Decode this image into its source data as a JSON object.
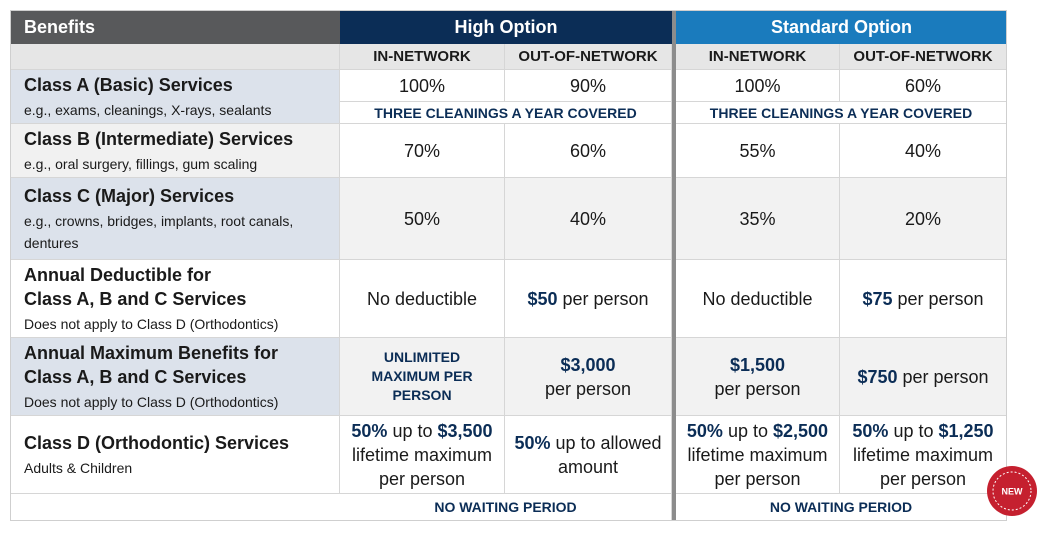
{
  "header": {
    "benefits": "Benefits",
    "high_option": "High Option",
    "standard_option": "Standard Option",
    "columns": [
      "IN-NETWORK",
      "OUT-OF-NETWORK",
      "IN-NETWORK",
      "OUT-OF-NETWORK"
    ]
  },
  "rows": [
    {
      "title": [
        "Class A (Basic) Services"
      ],
      "subtitle": "e.g., exams, cleanings, X-rays, sealants",
      "cells": [
        "100%",
        "90%",
        "100%",
        "60%"
      ],
      "notes": [
        "THREE CLEANINGS A YEAR COVERED",
        "THREE CLEANINGS A YEAR COVERED"
      ]
    },
    {
      "title": [
        "Class B (Intermediate) Services"
      ],
      "subtitle": "e.g., oral surgery, fillings, gum scaling",
      "cells": [
        "70%",
        "60%",
        "55%",
        "40%"
      ]
    },
    {
      "title": [
        "Class C (Major) Services"
      ],
      "subtitle": "e.g., crowns, bridges, implants, root canals, dentures",
      "cells": [
        "50%",
        "40%",
        "35%",
        "20%"
      ]
    },
    {
      "title": [
        "Annual Deductible for",
        "Class A, B and C Services"
      ],
      "subtitle": "Does not apply to Class D (Orthodontics)",
      "cells": [
        "No deductible",
        [
          {
            "text": "$50",
            "bold": true
          },
          {
            "text": "per person"
          }
        ],
        "No deductible",
        [
          {
            "text": "$75",
            "bold": true
          },
          {
            "text": "per person"
          }
        ]
      ]
    },
    {
      "title": [
        "Annual Maximum Benefits for",
        "Class A, B and C Services"
      ],
      "subtitle": "Does not apply to Class D (Orthodontics)",
      "cells": [
        [
          {
            "text": "UNLIMITED MAXIMUM PER PERSON",
            "emphasis": true
          }
        ],
        [
          {
            "text": "$3,000",
            "bold": true,
            "block": true
          },
          {
            "text": "per person"
          }
        ],
        [
          {
            "text": "$1,500",
            "bold": true,
            "block": true
          },
          {
            "text": "per person"
          }
        ],
        [
          {
            "text": "$750",
            "bold": true
          },
          {
            "text": "per person"
          }
        ]
      ]
    },
    {
      "title": [
        "Class D (Orthodontic) Services"
      ],
      "subtitle": "Adults & Children",
      "cells": [
        [
          {
            "text": "50%",
            "bold": true
          },
          {
            "text": "up to"
          },
          {
            "text": "$3,500",
            "bold": true
          },
          {
            "text": "lifetime maximum per person"
          }
        ],
        [
          {
            "text": "50%",
            "bold": true
          },
          {
            "text": "up to allowed amount"
          }
        ],
        [
          {
            "text": "50%",
            "bold": true
          },
          {
            "text": "up to"
          },
          {
            "text": "$2,500",
            "bold": true
          },
          {
            "text": "lifetime maximum per person"
          }
        ],
        [
          {
            "text": "50%",
            "bold": true
          },
          {
            "text": "up to"
          },
          {
            "text": "$1,250",
            "bold": true
          },
          {
            "text": "lifetime maximum per person"
          }
        ]
      ],
      "notes": [
        "NO WAITING PERIOD",
        "NO WAITING PERIOD"
      ]
    }
  ],
  "badge": "NEW"
}
